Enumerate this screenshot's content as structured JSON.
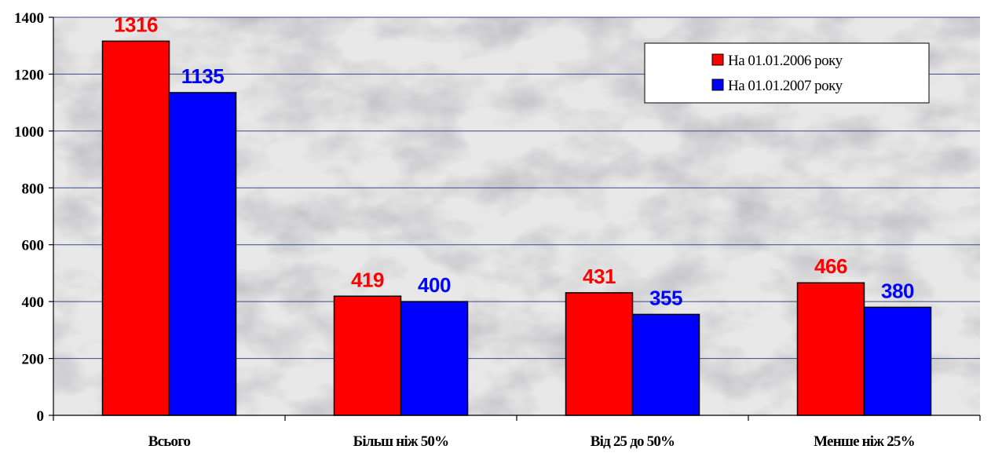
{
  "chart_data": {
    "type": "bar",
    "categories": [
      "Всього",
      "Більш ніж 50%",
      "Від 25 до 50%",
      "Менше ніж 25%"
    ],
    "series": [
      {
        "name": "На 01.01.2006 року",
        "values": [
          1316,
          419,
          431,
          466
        ],
        "color": "#ff0000",
        "label_color": "#ff0000"
      },
      {
        "name": "На 01.01.2007 року",
        "values": [
          1135,
          400,
          355,
          380
        ],
        "color": "#0000ff",
        "label_color": "#0000ff"
      }
    ],
    "ylim": [
      0,
      1400
    ],
    "yticks": [
      0,
      200,
      400,
      600,
      800,
      1000,
      1200,
      1400
    ],
    "grid": true,
    "legend_position": "top-right",
    "title": "",
    "xlabel": "",
    "ylabel": ""
  },
  "style": {
    "plot_background": "#e8e8e8",
    "gridline_color": "#3a4a8a",
    "bar_outline": "#000000"
  }
}
